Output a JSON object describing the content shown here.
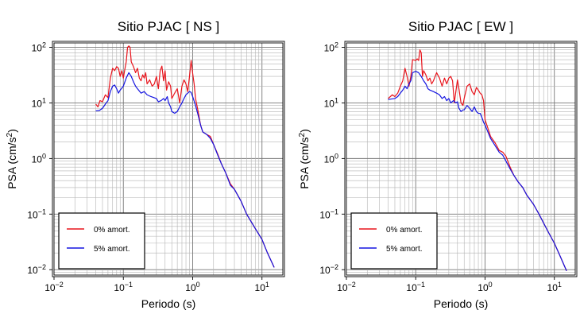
{
  "chart_data": [
    {
      "type": "line",
      "title": "Sitio PJAC [ NS ]",
      "xlabel": "Periodo (s)",
      "ylabel_main": "PSA (cm/s",
      "ylabel_sup": "2",
      "ylabel_tail": ")",
      "x_scale": "log",
      "y_scale": "log",
      "xlim": [
        0.01,
        20
      ],
      "ylim": [
        0.008,
        120
      ],
      "grid": true,
      "legend_position": "bottom-left",
      "x_ticks": [
        {
          "base": "10",
          "exp": "−2"
        },
        {
          "base": "10",
          "exp": "−1"
        },
        {
          "base": "10",
          "exp": "0"
        },
        {
          "base": "10",
          "exp": "1"
        }
      ],
      "y_ticks": [
        {
          "base": "10",
          "exp": "−2"
        },
        {
          "base": "10",
          "exp": "−1"
        },
        {
          "base": "10",
          "exp": "0"
        },
        {
          "base": "10",
          "exp": "1"
        },
        {
          "base": "10",
          "exp": "2"
        }
      ],
      "series": [
        {
          "name": "0% amort.",
          "color": "#e8141c",
          "points": [
            [
              0.04,
              9.5
            ],
            [
              0.043,
              8.5
            ],
            [
              0.046,
              11
            ],
            [
              0.05,
              10.5
            ],
            [
              0.055,
              14
            ],
            [
              0.06,
              12.5
            ],
            [
              0.065,
              28
            ],
            [
              0.07,
              42
            ],
            [
              0.075,
              38
            ],
            [
              0.08,
              45
            ],
            [
              0.085,
              42
            ],
            [
              0.09,
              30
            ],
            [
              0.095,
              38
            ],
            [
              0.1,
              28
            ],
            [
              0.105,
              40
            ],
            [
              0.11,
              55
            ],
            [
              0.115,
              100
            ],
            [
              0.12,
              106
            ],
            [
              0.125,
              100
            ],
            [
              0.13,
              55
            ],
            [
              0.14,
              45
            ],
            [
              0.15,
              35
            ],
            [
              0.16,
              42
            ],
            [
              0.17,
              28
            ],
            [
              0.18,
              25
            ],
            [
              0.19,
              32
            ],
            [
              0.2,
              28
            ],
            [
              0.21,
              35
            ],
            [
              0.22,
              22
            ],
            [
              0.24,
              26
            ],
            [
              0.26,
              20
            ],
            [
              0.28,
              22
            ],
            [
              0.3,
              30
            ],
            [
              0.32,
              18
            ],
            [
              0.34,
              38
            ],
            [
              0.36,
              46
            ],
            [
              0.38,
              25
            ],
            [
              0.4,
              38
            ],
            [
              0.42,
              17
            ],
            [
              0.45,
              24
            ],
            [
              0.48,
              20
            ],
            [
              0.5,
              12
            ],
            [
              0.55,
              15
            ],
            [
              0.6,
              18
            ],
            [
              0.65,
              10
            ],
            [
              0.7,
              20
            ],
            [
              0.75,
              26
            ],
            [
              0.8,
              22
            ],
            [
              0.85,
              16
            ],
            [
              0.9,
              30
            ],
            [
              0.95,
              58
            ],
            [
              1.0,
              34
            ],
            [
              1.05,
              22
            ],
            [
              1.1,
              12
            ],
            [
              1.2,
              7
            ],
            [
              1.3,
              4
            ],
            [
              1.4,
              3
            ],
            [
              1.6,
              2.7
            ],
            [
              1.8,
              2.5
            ],
            [
              2.0,
              1.8
            ],
            [
              2.3,
              1.2
            ],
            [
              2.6,
              0.8
            ],
            [
              3.0,
              0.55
            ],
            [
              3.5,
              0.35
            ],
            [
              4.0,
              0.28
            ],
            [
              5.0,
              0.17
            ],
            [
              6.0,
              0.1
            ],
            [
              8.0,
              0.055
            ],
            [
              10.0,
              0.035
            ],
            [
              12.0,
              0.02
            ],
            [
              15.0,
              0.011
            ]
          ]
        },
        {
          "name": "5% amort.",
          "color": "#1414e0",
          "points": [
            [
              0.04,
              7.2
            ],
            [
              0.045,
              7.3
            ],
            [
              0.05,
              8
            ],
            [
              0.055,
              9.5
            ],
            [
              0.06,
              11
            ],
            [
              0.065,
              16
            ],
            [
              0.07,
              20
            ],
            [
              0.075,
              21
            ],
            [
              0.08,
              18
            ],
            [
              0.085,
              15
            ],
            [
              0.09,
              17
            ],
            [
              0.1,
              20
            ],
            [
              0.11,
              28
            ],
            [
              0.12,
              35
            ],
            [
              0.13,
              30
            ],
            [
              0.14,
              24
            ],
            [
              0.15,
              20
            ],
            [
              0.16,
              18
            ],
            [
              0.18,
              15
            ],
            [
              0.2,
              16
            ],
            [
              0.22,
              14
            ],
            [
              0.25,
              13
            ],
            [
              0.3,
              12
            ],
            [
              0.32,
              10.5
            ],
            [
              0.35,
              11
            ],
            [
              0.38,
              12
            ],
            [
              0.4,
              11
            ],
            [
              0.43,
              13
            ],
            [
              0.45,
              10
            ],
            [
              0.48,
              8.5
            ],
            [
              0.5,
              7
            ],
            [
              0.55,
              6.5
            ],
            [
              0.6,
              7
            ],
            [
              0.65,
              8.5
            ],
            [
              0.7,
              10
            ],
            [
              0.75,
              12
            ],
            [
              0.8,
              14
            ],
            [
              0.9,
              16
            ],
            [
              0.95,
              15.5
            ],
            [
              1.0,
              13
            ],
            [
              1.1,
              9
            ],
            [
              1.2,
              6
            ],
            [
              1.3,
              4
            ],
            [
              1.4,
              3
            ],
            [
              1.6,
              2.7
            ],
            [
              1.8,
              2.3
            ],
            [
              2.0,
              1.8
            ],
            [
              2.3,
              1.15
            ],
            [
              2.6,
              0.8
            ],
            [
              3.0,
              0.55
            ],
            [
              3.5,
              0.33
            ],
            [
              4.0,
              0.28
            ],
            [
              5.0,
              0.17
            ],
            [
              6.0,
              0.1
            ],
            [
              8.0,
              0.055
            ],
            [
              10.0,
              0.035
            ],
            [
              12.0,
              0.02
            ],
            [
              15.0,
              0.011
            ]
          ]
        }
      ]
    },
    {
      "type": "line",
      "title": "Sitio PJAC [ EW ]",
      "xlabel": "Periodo (s)",
      "ylabel_main": "PSA (cm/s",
      "ylabel_sup": "2",
      "ylabel_tail": ")",
      "x_scale": "log",
      "y_scale": "log",
      "xlim": [
        0.01,
        20
      ],
      "ylim": [
        0.008,
        120
      ],
      "grid": true,
      "legend_position": "bottom-left",
      "x_ticks": [
        {
          "base": "10",
          "exp": "−2"
        },
        {
          "base": "10",
          "exp": "−1"
        },
        {
          "base": "10",
          "exp": "0"
        },
        {
          "base": "10",
          "exp": "1"
        }
      ],
      "y_ticks": [
        {
          "base": "10",
          "exp": "−2"
        },
        {
          "base": "10",
          "exp": "−1"
        },
        {
          "base": "10",
          "exp": "0"
        },
        {
          "base": "10",
          "exp": "1"
        },
        {
          "base": "10",
          "exp": "2"
        }
      ],
      "series": [
        {
          "name": "0% amort.",
          "color": "#e8141c",
          "points": [
            [
              0.04,
              12
            ],
            [
              0.043,
              13
            ],
            [
              0.046,
              14
            ],
            [
              0.05,
              13
            ],
            [
              0.055,
              15
            ],
            [
              0.06,
              20
            ],
            [
              0.065,
              25
            ],
            [
              0.07,
              42
            ],
            [
              0.075,
              30
            ],
            [
              0.08,
              20
            ],
            [
              0.085,
              30
            ],
            [
              0.09,
              60
            ],
            [
              0.1,
              58
            ],
            [
              0.105,
              62
            ],
            [
              0.11,
              58
            ],
            [
              0.115,
              90
            ],
            [
              0.12,
              80
            ],
            [
              0.125,
              30
            ],
            [
              0.13,
              38
            ],
            [
              0.14,
              32
            ],
            [
              0.15,
              25
            ],
            [
              0.16,
              28
            ],
            [
              0.17,
              22
            ],
            [
              0.18,
              25
            ],
            [
              0.2,
              35
            ],
            [
              0.22,
              28
            ],
            [
              0.24,
              20
            ],
            [
              0.26,
              28
            ],
            [
              0.28,
              22
            ],
            [
              0.3,
              28
            ],
            [
              0.32,
              30
            ],
            [
              0.34,
              25
            ],
            [
              0.36,
              10
            ],
            [
              0.4,
              26
            ],
            [
              0.42,
              18
            ],
            [
              0.45,
              10
            ],
            [
              0.48,
              9
            ],
            [
              0.5,
              12
            ],
            [
              0.55,
              20
            ],
            [
              0.6,
              22
            ],
            [
              0.65,
              16
            ],
            [
              0.7,
              14
            ],
            [
              0.75,
              19
            ],
            [
              0.8,
              17
            ],
            [
              0.85,
              15
            ],
            [
              0.9,
              14
            ],
            [
              0.95,
              11
            ],
            [
              1.0,
              5
            ],
            [
              1.1,
              3.5
            ],
            [
              1.2,
              2.5
            ],
            [
              1.4,
              1.9
            ],
            [
              1.6,
              1.4
            ],
            [
              1.8,
              1.3
            ],
            [
              2.0,
              1.1
            ],
            [
              2.3,
              0.7
            ],
            [
              2.6,
              0.5
            ],
            [
              3.0,
              0.38
            ],
            [
              3.5,
              0.3
            ],
            [
              4.0,
              0.22
            ],
            [
              5.0,
              0.15
            ],
            [
              6.0,
              0.1
            ],
            [
              8.0,
              0.05
            ],
            [
              10.0,
              0.03
            ],
            [
              12.0,
              0.018
            ],
            [
              15.0,
              0.0095
            ]
          ]
        },
        {
          "name": "5% amort.",
          "color": "#1414e0",
          "points": [
            [
              0.04,
              11.5
            ],
            [
              0.045,
              11.8
            ],
            [
              0.05,
              12
            ],
            [
              0.055,
              13
            ],
            [
              0.06,
              15
            ],
            [
              0.065,
              17
            ],
            [
              0.07,
              20
            ],
            [
              0.075,
              18
            ],
            [
              0.08,
              22
            ],
            [
              0.085,
              25
            ],
            [
              0.09,
              35
            ],
            [
              0.1,
              37
            ],
            [
              0.11,
              35
            ],
            [
              0.12,
              30
            ],
            [
              0.13,
              25
            ],
            [
              0.14,
              22
            ],
            [
              0.15,
              18
            ],
            [
              0.16,
              17
            ],
            [
              0.18,
              16
            ],
            [
              0.2,
              15
            ],
            [
              0.22,
              14
            ],
            [
              0.24,
              12
            ],
            [
              0.26,
              13
            ],
            [
              0.28,
              11
            ],
            [
              0.3,
              12
            ],
            [
              0.32,
              10
            ],
            [
              0.35,
              11
            ],
            [
              0.38,
              10
            ],
            [
              0.4,
              10.5
            ],
            [
              0.42,
              8
            ],
            [
              0.45,
              7
            ],
            [
              0.48,
              7.5
            ],
            [
              0.5,
              7.5
            ],
            [
              0.55,
              9
            ],
            [
              0.6,
              8
            ],
            [
              0.65,
              7
            ],
            [
              0.7,
              8.5
            ],
            [
              0.75,
              7
            ],
            [
              0.8,
              6.5
            ],
            [
              0.85,
              6.5
            ],
            [
              0.9,
              5.5
            ],
            [
              0.95,
              4.5
            ],
            [
              1.0,
              4
            ],
            [
              1.1,
              3
            ],
            [
              1.2,
              2.3
            ],
            [
              1.4,
              1.7
            ],
            [
              1.6,
              1.3
            ],
            [
              1.8,
              1.15
            ],
            [
              2.0,
              0.9
            ],
            [
              2.3,
              0.65
            ],
            [
              2.6,
              0.5
            ],
            [
              3.0,
              0.38
            ],
            [
              3.5,
              0.3
            ],
            [
              4.0,
              0.22
            ],
            [
              5.0,
              0.15
            ],
            [
              6.0,
              0.1
            ],
            [
              8.0,
              0.05
            ],
            [
              10.0,
              0.03
            ],
            [
              12.0,
              0.018
            ],
            [
              15.0,
              0.0095
            ]
          ]
        }
      ]
    }
  ]
}
